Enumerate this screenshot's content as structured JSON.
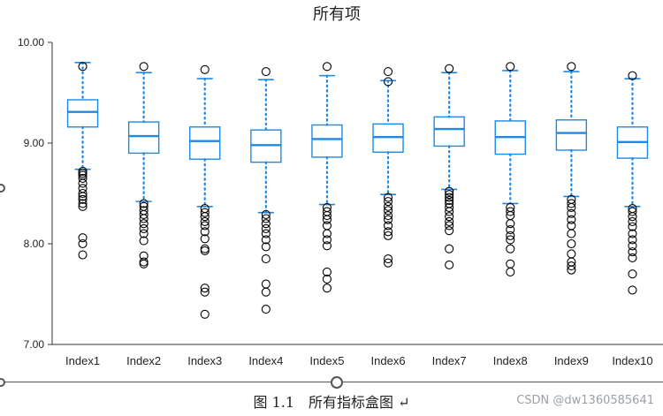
{
  "chart_data": {
    "type": "box",
    "title": "所有项",
    "categories": [
      "Index1",
      "Index2",
      "Index3",
      "Index4",
      "Index5",
      "Index6",
      "Index7",
      "Index8",
      "Index9",
      "Index10"
    ],
    "ylim": [
      7.0,
      10.0
    ],
    "yticks": [
      "7.00",
      "8.00",
      "9.00",
      "10.00"
    ],
    "grid": false,
    "boxes": [
      {
        "whisker_high": 9.8,
        "q3": 9.43,
        "median": 9.31,
        "q1": 9.16,
        "whisker_low": 8.74,
        "outliers": [
          8.72,
          8.7,
          8.68,
          8.65,
          8.6,
          8.55,
          8.5,
          8.47,
          8.44,
          8.4,
          8.37,
          8.06,
          8.0,
          7.89,
          9.76
        ]
      },
      {
        "whisker_high": 9.7,
        "q3": 9.21,
        "median": 9.07,
        "q1": 8.9,
        "whisker_low": 8.42,
        "outliers": [
          9.76,
          8.4,
          8.37,
          8.33,
          8.29,
          8.25,
          8.2,
          8.15,
          8.1,
          8.03,
          7.88,
          7.82,
          7.8
        ]
      },
      {
        "whisker_high": 9.64,
        "q3": 9.16,
        "median": 9.02,
        "q1": 8.84,
        "whisker_low": 8.37,
        "outliers": [
          9.73,
          8.35,
          8.31,
          8.27,
          8.22,
          8.18,
          8.12,
          8.05,
          7.95,
          7.93,
          7.56,
          7.52,
          7.3
        ]
      },
      {
        "whisker_high": 9.63,
        "q3": 9.13,
        "median": 8.98,
        "q1": 8.81,
        "whisker_low": 8.31,
        "outliers": [
          9.71,
          8.29,
          8.25,
          8.2,
          8.15,
          8.1,
          8.04,
          7.97,
          7.85,
          7.6,
          7.52,
          7.35
        ]
      },
      {
        "whisker_high": 9.67,
        "q3": 9.18,
        "median": 9.04,
        "q1": 8.86,
        "whisker_low": 8.39,
        "outliers": [
          9.76,
          8.36,
          8.32,
          8.28,
          8.24,
          8.18,
          8.1,
          8.04,
          7.98,
          7.72,
          7.65,
          7.56
        ]
      },
      {
        "whisker_high": 9.62,
        "q3": 9.19,
        "median": 9.06,
        "q1": 8.91,
        "whisker_low": 8.49,
        "outliers": [
          9.71,
          9.61,
          8.46,
          8.42,
          8.37,
          8.33,
          8.28,
          8.24,
          8.18,
          8.12,
          8.08,
          7.85,
          7.81
        ]
      },
      {
        "whisker_high": 9.7,
        "q3": 9.26,
        "median": 9.14,
        "q1": 8.97,
        "whisker_low": 8.54,
        "outliers": [
          9.74,
          8.52,
          8.49,
          8.46,
          8.43,
          8.4,
          8.36,
          8.32,
          8.27,
          8.22,
          8.18,
          8.13,
          7.95,
          7.79
        ]
      },
      {
        "whisker_high": 9.72,
        "q3": 9.22,
        "median": 9.06,
        "q1": 8.89,
        "whisker_low": 8.4,
        "outliers": [
          9.76,
          8.36,
          8.32,
          8.28,
          8.2,
          8.14,
          8.08,
          8.04,
          7.95,
          7.8,
          7.72
        ]
      },
      {
        "whisker_high": 9.71,
        "q3": 9.23,
        "median": 9.1,
        "q1": 8.93,
        "whisker_low": 8.47,
        "outliers": [
          9.76,
          8.44,
          8.4,
          8.36,
          8.3,
          8.24,
          8.18,
          8.1,
          8.0,
          7.9,
          7.82,
          7.78,
          7.74
        ]
      },
      {
        "whisker_high": 9.64,
        "q3": 9.16,
        "median": 9.01,
        "q1": 8.85,
        "whisker_low": 8.37,
        "outliers": [
          9.67,
          8.35,
          8.32,
          8.27,
          8.22,
          8.17,
          8.1,
          8.04,
          7.98,
          7.92,
          7.86,
          7.7,
          7.54
        ]
      }
    ],
    "colors": {
      "box": "#1e88e5",
      "axis": "#333333",
      "outlier": "#000000"
    }
  },
  "caption": "图 1.1　所有指标盒图 ↵",
  "watermark": "CSDN @dw1360585641"
}
